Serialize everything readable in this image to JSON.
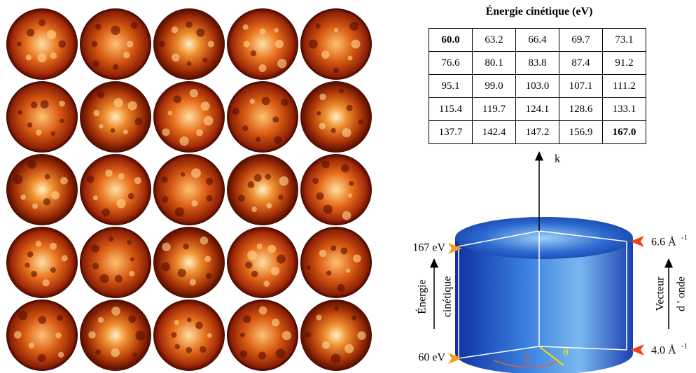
{
  "table": {
    "title": "Énergie cinétique (eV)",
    "rows": [
      [
        "60.0",
        "63.2",
        "66.4",
        "69.7",
        "73.1"
      ],
      [
        "76.6",
        "80.1",
        "83.8",
        "87.4",
        "91.2"
      ],
      [
        "95.1",
        "99.0",
        "103.0",
        "107.1",
        "111.2"
      ],
      [
        "115.4",
        "119.7",
        "124.1",
        "128.6",
        "133.1"
      ],
      [
        "137.7",
        "142.4",
        "147.2",
        "156.9",
        "167.0"
      ]
    ]
  },
  "diagram": {
    "axis_label": "k",
    "energy_top": "167 eV",
    "energy_bottom": "60 eV",
    "energy_label": [
      "Énergie",
      "cinétique"
    ],
    "wave_top": {
      "label": "6.6 Å",
      "exponent": "-1"
    },
    "wave_bottom": {
      "label": "4.0 Å",
      "exponent": "-1"
    },
    "wave_label": [
      "Vecteur",
      "d ' onde"
    ],
    "phi": "ϕ",
    "theta": "θ"
  }
}
